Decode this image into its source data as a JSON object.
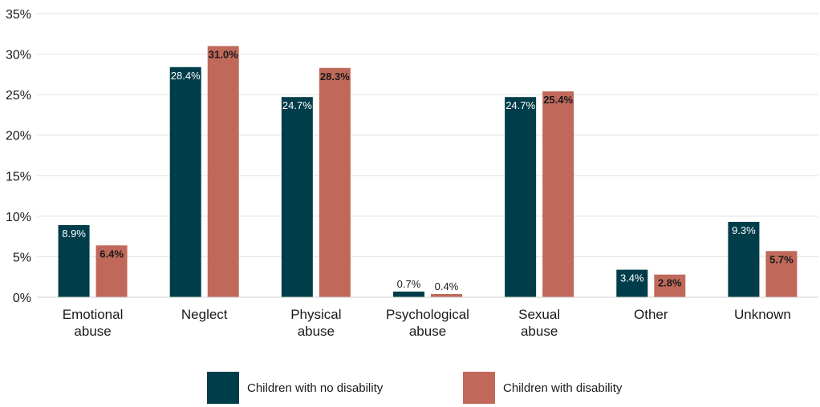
{
  "chart_data": {
    "type": "bar",
    "title": "",
    "xlabel": "",
    "ylabel": "",
    "ylim": [
      0,
      35
    ],
    "yticks": [
      "0%",
      "5%",
      "10%",
      "15%",
      "20%",
      "25%",
      "30%",
      "35%"
    ],
    "categories": [
      [
        "Emotional",
        "abuse"
      ],
      [
        "Neglect"
      ],
      [
        "Physical",
        "abuse"
      ],
      [
        "Psychological",
        "abuse"
      ],
      [
        "Sexual",
        "abuse"
      ],
      [
        "Other"
      ],
      [
        "Unknown"
      ]
    ],
    "series": [
      {
        "name": "Children with no disability",
        "color": "#003d4a",
        "values": [
          8.9,
          28.4,
          24.7,
          0.7,
          24.7,
          3.4,
          9.3
        ],
        "labels": [
          "8.9%",
          "28.4%",
          "24.7%",
          "0.7%",
          "24.7%",
          "3.4%",
          "9.3%"
        ]
      },
      {
        "name": "Children with disability",
        "color": "#c0695a",
        "values": [
          6.4,
          31.0,
          28.3,
          0.4,
          25.4,
          2.8,
          5.7
        ],
        "labels": [
          "6.4%",
          "31.0%",
          "28.3%",
          "0.4%",
          "25.4%",
          "2.8%",
          "5.7%"
        ]
      }
    ],
    "grid": true,
    "legend_position": "bottom"
  }
}
